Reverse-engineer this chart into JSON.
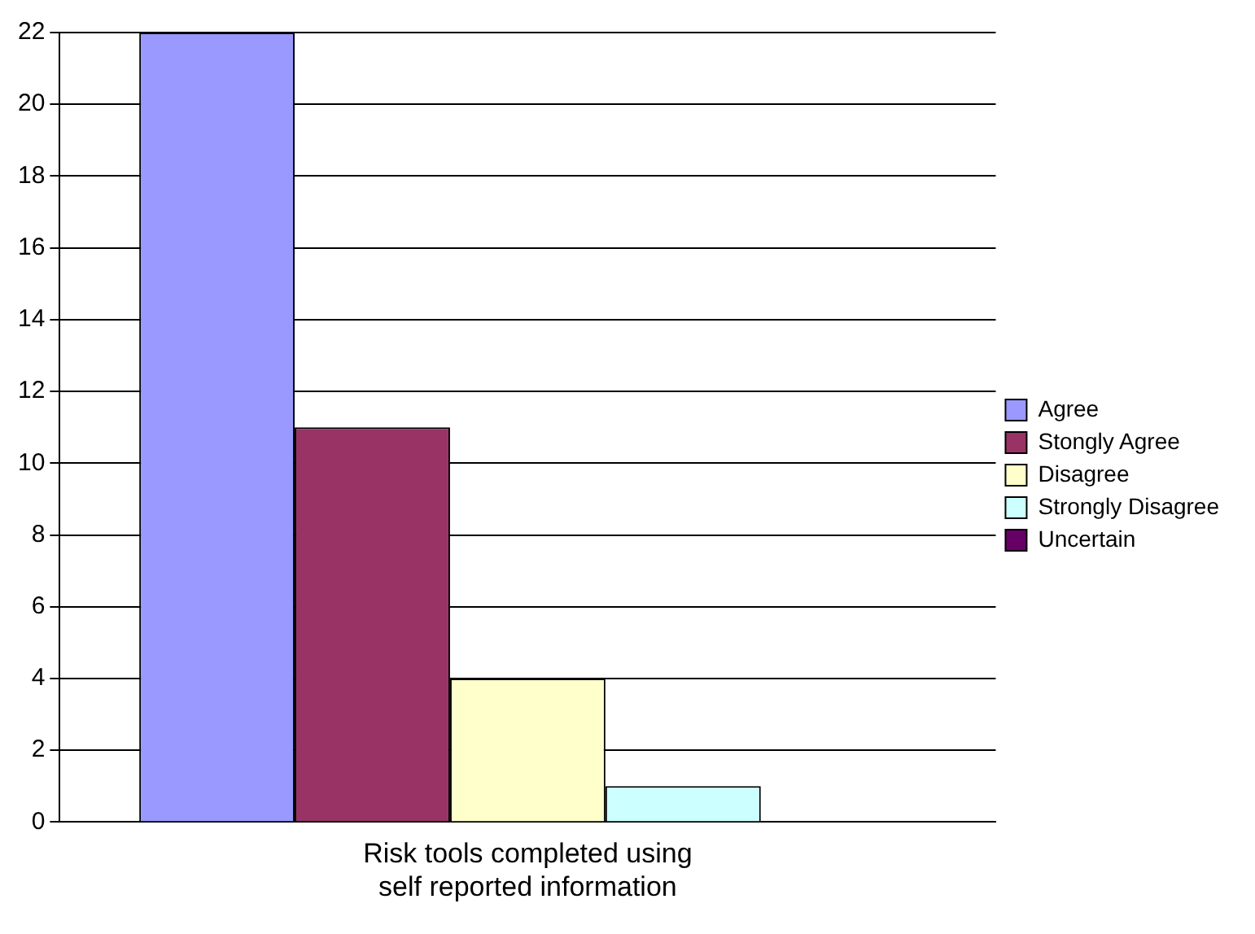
{
  "chart_data": {
    "type": "bar",
    "categories": [
      "Risk tools completed using self reported information"
    ],
    "series": [
      {
        "name": "Agree",
        "color": "#9999ff",
        "values": [
          22
        ]
      },
      {
        "name": "Stongly Agree",
        "color": "#993366",
        "values": [
          11
        ]
      },
      {
        "name": "Disagree",
        "color": "#ffffcc",
        "values": [
          4
        ]
      },
      {
        "name": "Strongly Disagree",
        "color": "#ccffff",
        "values": [
          1
        ]
      },
      {
        "name": "Uncertain",
        "color": "#660066",
        "values": [
          0
        ]
      }
    ],
    "ylim": [
      0,
      22
    ],
    "yticks": [
      0,
      2,
      4,
      6,
      8,
      10,
      12,
      14,
      16,
      18,
      20,
      22
    ],
    "grid": "y",
    "legend": "right"
  }
}
